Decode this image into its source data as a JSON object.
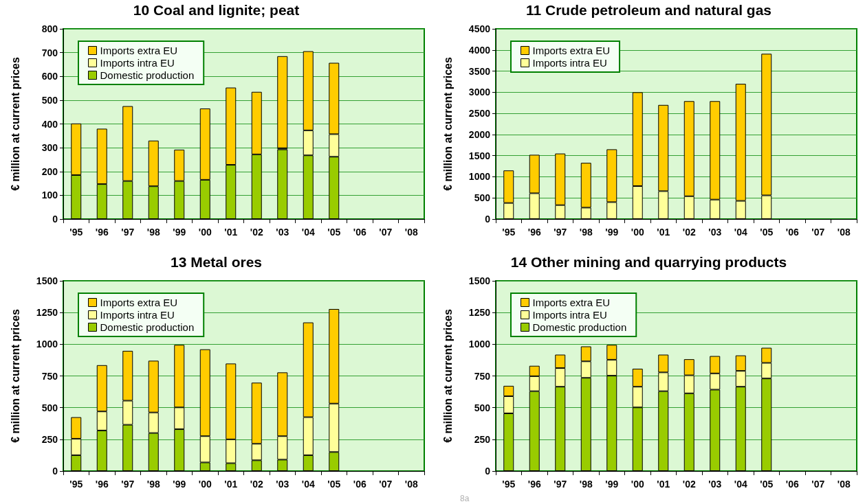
{
  "chart_data": [
    {
      "type": "bar",
      "title": "10 Coal and lignite; peat",
      "ylabel": "€ million at current prices",
      "categories": [
        "'95",
        "'96",
        "'97",
        "'98",
        "'99",
        "'00",
        "'01",
        "'02",
        "'03",
        "'04",
        "'05",
        "'06",
        "'07",
        "'08"
      ],
      "stacked": true,
      "ylim": [
        0,
        800
      ],
      "yticks": [
        0,
        100,
        200,
        300,
        400,
        500,
        600,
        700,
        800
      ],
      "grid": "y",
      "legend": "top left",
      "series": [
        {
          "name": "Domestic production",
          "color": "#99cc00",
          "values": [
            185,
            147,
            160,
            138,
            160,
            165,
            228,
            272,
            293,
            268,
            262,
            null,
            null,
            null
          ]
        },
        {
          "name": "Imports intra EU",
          "color": "#ffff99",
          "values": [
            null,
            null,
            null,
            null,
            null,
            null,
            null,
            null,
            5,
            105,
            95,
            null,
            null,
            null
          ]
        },
        {
          "name": "Imports extra EU",
          "color": "#ffcc00",
          "values": [
            217,
            233,
            315,
            192,
            132,
            300,
            325,
            263,
            387,
            333,
            300,
            null,
            null,
            null
          ]
        }
      ]
    },
    {
      "type": "bar",
      "title": "11 Crude petroleum and natural gas",
      "ylabel": "€ million at current prices",
      "categories": [
        "'95",
        "'96",
        "'97",
        "'98",
        "'99",
        "'00",
        "'01",
        "'02",
        "'03",
        "'04",
        "'05",
        "'06",
        "'07",
        "'08"
      ],
      "stacked": true,
      "ylim": [
        0,
        4500
      ],
      "yticks": [
        0,
        500,
        1000,
        1500,
        2000,
        2500,
        3000,
        3500,
        4000,
        4500
      ],
      "grid": "y",
      "legend": "top left",
      "series": [
        {
          "name": "Imports intra EU",
          "color": "#ffff99",
          "values": [
            380,
            610,
            330,
            270,
            400,
            780,
            660,
            540,
            460,
            430,
            560,
            null,
            null,
            null
          ]
        },
        {
          "name": "Imports extra EU",
          "color": "#ffcc00",
          "values": [
            770,
            910,
            1220,
            1060,
            1250,
            2220,
            2040,
            2250,
            2330,
            2770,
            3350,
            null,
            null,
            null
          ]
        }
      ]
    },
    {
      "type": "bar",
      "title": "13 Metal ores",
      "ylabel": "€ million at current prices",
      "categories": [
        "'95",
        "'96",
        "'97",
        "'98",
        "'99",
        "'00",
        "'01",
        "'02",
        "'03",
        "'04",
        "'05",
        "'06",
        "'07",
        "'08"
      ],
      "stacked": true,
      "ylim": [
        0,
        1500
      ],
      "yticks": [
        0,
        250,
        500,
        750,
        1000,
        1250,
        1500
      ],
      "grid": "y",
      "legend": "top left",
      "series": [
        {
          "name": "Domestic production",
          "color": "#99cc00",
          "values": [
            125,
            320,
            365,
            300,
            330,
            68,
            62,
            85,
            90,
            125,
            150,
            null,
            null,
            null
          ]
        },
        {
          "name": "Imports intra EU",
          "color": "#ffff99",
          "values": [
            130,
            150,
            190,
            162,
            172,
            207,
            188,
            130,
            185,
            300,
            382,
            null,
            null,
            null
          ]
        },
        {
          "name": "Imports extra EU",
          "color": "#ffcc00",
          "values": [
            170,
            365,
            393,
            408,
            493,
            685,
            598,
            482,
            503,
            747,
            746,
            null,
            null,
            null
          ]
        }
      ]
    },
    {
      "type": "bar",
      "title": "14 Other mining and quarrying products",
      "ylabel": "€ million at current prices",
      "categories": [
        "'95",
        "'96",
        "'97",
        "'98",
        "'99",
        "'00",
        "'01",
        "'02",
        "'03",
        "'04",
        "'05",
        "'06",
        "'07",
        "'08"
      ],
      "stacked": true,
      "ylim": [
        0,
        1500
      ],
      "yticks": [
        0,
        250,
        500,
        750,
        1000,
        1250,
        1500
      ],
      "grid": "y",
      "legend": "top left",
      "annotations": [
        "8a"
      ],
      "series": [
        {
          "name": "Domestic production",
          "color": "#99cc00",
          "values": [
            455,
            630,
            665,
            735,
            752,
            502,
            630,
            613,
            642,
            665,
            730,
            null,
            null,
            null
          ]
        },
        {
          "name": "Imports intra EU",
          "color": "#ffff99",
          "values": [
            135,
            118,
            147,
            130,
            126,
            163,
            148,
            142,
            128,
            125,
            123,
            null,
            null,
            null
          ]
        },
        {
          "name": "Imports extra EU",
          "color": "#ffcc00",
          "values": [
            82,
            82,
            106,
            118,
            117,
            142,
            140,
            127,
            137,
            122,
            119,
            null,
            null,
            null
          ]
        }
      ]
    }
  ]
}
